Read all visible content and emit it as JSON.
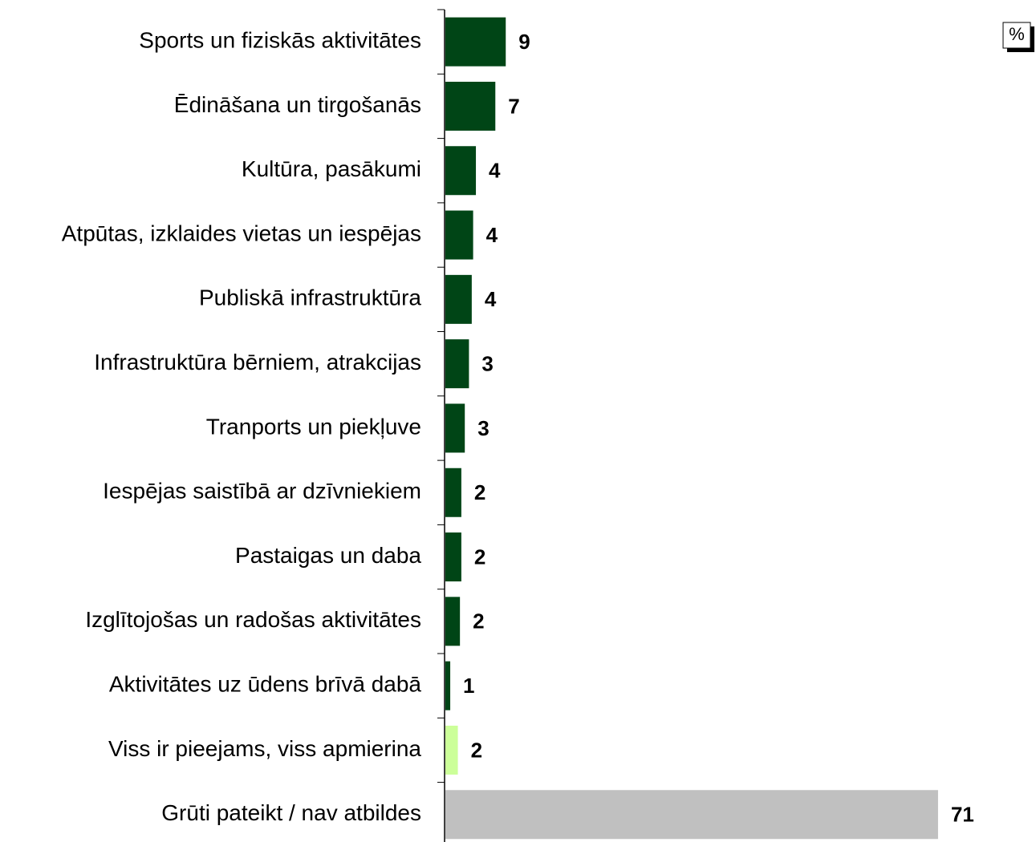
{
  "chart_data": {
    "type": "hbar",
    "unit_label": "%",
    "categories": [
      "Sports un fiziskās aktivitātes",
      "Ēdināšana un tirgošanās",
      "Kultūra, pasākumi",
      "Atpūtas, izklaides vietas un iespējas",
      "Publiskā infrastruktūra",
      "Infrastruktūra bērniem, atrakcijas",
      "Tranports un piekļuve",
      "Iespējas saistībā ar dzīvniekiem",
      "Pastaigas un daba",
      "Izglītojošas un radošas aktivitātes",
      "Aktivitātes uz ūdens brīvā dabā",
      "Viss ir pieejams, viss apmierina",
      "Grūti pateikt / nav atbildes"
    ],
    "values": [
      8.7,
      7.2,
      4.4,
      4.0,
      3.8,
      3.4,
      2.8,
      2.3,
      2.3,
      2.1,
      0.7,
      1.8,
      71
    ],
    "value_labels": [
      "9",
      "7",
      "4",
      "4",
      "4",
      "3",
      "3",
      "2",
      "2",
      "2",
      "1",
      "2",
      "71"
    ],
    "colors": [
      "#004516",
      "#004516",
      "#004516",
      "#004516",
      "#004516",
      "#004516",
      "#004516",
      "#004516",
      "#004516",
      "#004516",
      "#004516",
      "#ccff99",
      "#c0c0c0"
    ],
    "xlim": [
      0,
      85
    ]
  }
}
